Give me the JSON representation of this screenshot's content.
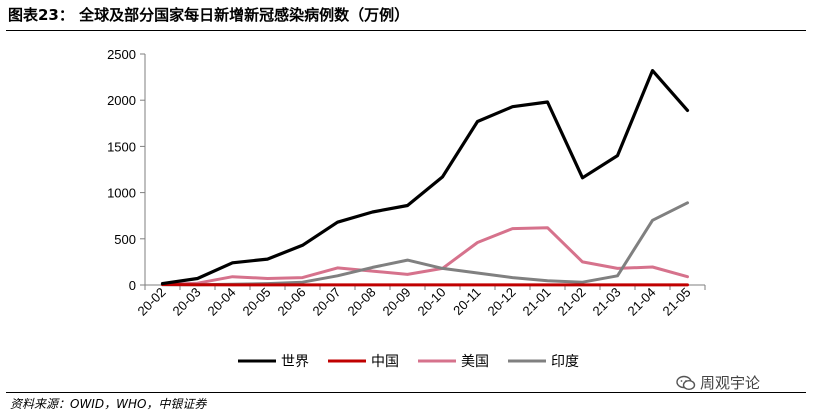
{
  "figure": {
    "title": "图表23：  全球及部分国家每日新增新冠感染病例数（万例）",
    "source": "资料来源：OWID，WHO，中银证券",
    "watermark": "周观宇论",
    "watermark_icon": "wechat-icon"
  },
  "chart_data": {
    "type": "line",
    "title": "",
    "xlabel": "",
    "ylabel": "",
    "categories": [
      "20-02",
      "20-03",
      "20-04",
      "20-05",
      "20-06",
      "20-07",
      "20-08",
      "20-09",
      "20-10",
      "20-11",
      "20-12",
      "21-01",
      "21-02",
      "21-03",
      "21-04",
      "21-05"
    ],
    "ylim": [
      0,
      2500
    ],
    "yticks": [
      0,
      500,
      1000,
      1500,
      2000,
      2500
    ],
    "grid": false,
    "legend_position": "bottom",
    "series": [
      {
        "name": "世界",
        "color": "#000000",
        "values": [
          15,
          70,
          240,
          280,
          430,
          680,
          790,
          860,
          1170,
          1770,
          1930,
          1980,
          1160,
          1400,
          2320,
          1890
        ]
      },
      {
        "name": "中国",
        "color": "#c00000",
        "values": [
          5,
          2,
          1,
          1,
          1,
          1,
          1,
          1,
          1,
          1,
          1,
          1,
          1,
          1,
          1,
          1
        ]
      },
      {
        "name": "美国",
        "color": "#d6728c",
        "values": [
          5,
          20,
          90,
          70,
          80,
          185,
          150,
          115,
          180,
          460,
          610,
          620,
          250,
          180,
          195,
          90
        ]
      },
      {
        "name": "印度",
        "color": "#808080",
        "values": [
          2,
          3,
          8,
          15,
          30,
          100,
          190,
          270,
          180,
          130,
          80,
          45,
          30,
          100,
          700,
          890
        ]
      }
    ]
  }
}
